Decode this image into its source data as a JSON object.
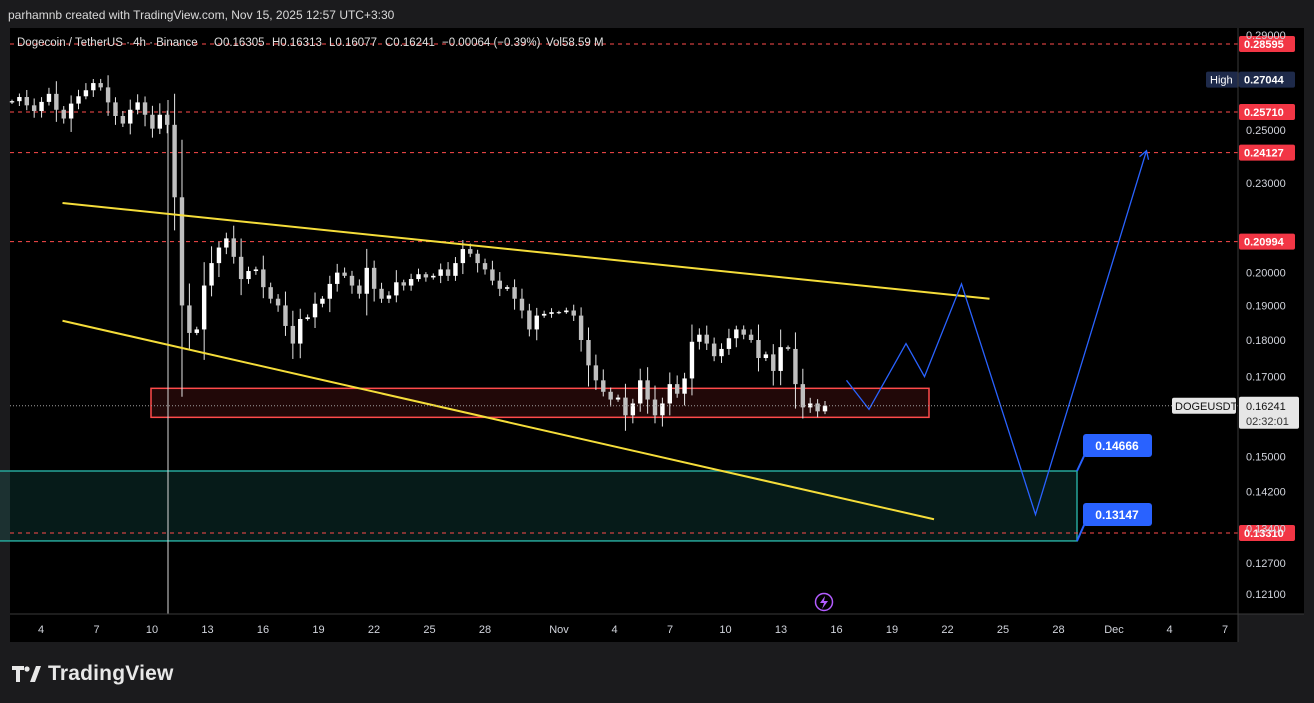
{
  "header": {
    "attribution": "parhamnb created with TradingView.com, Nov 15, 2025 12:57 UTC+3:30"
  },
  "legend": {
    "symbol": "Dogecoin / TetherUS · 4h · Binance",
    "open": "O0.16305",
    "high": "H0.16313",
    "low": "L0.16077",
    "close": "C0.16241",
    "change": "−0.00064 (−0.39%)",
    "volume": "Vol58.59 M"
  },
  "brand": {
    "name": "TradingView",
    "logo_icon": "tradingview-logo-icon"
  },
  "colors": {
    "background": "#000000",
    "frame": "#1b1b1d",
    "candle": "#e6e6e6",
    "yellow": "#f5dd3a",
    "red_level": "#ff4b4b",
    "blue_path": "#2962ff",
    "green_zone": "#26a69a",
    "label_blue": "#2962ff"
  },
  "chart_data": {
    "type": "candlestick",
    "price_axis": {
      "ticks": [
        "0.29000",
        "0.25000",
        "0.23000",
        "0.20000",
        "0.19000",
        "0.18000",
        "0.17000",
        "0.15000",
        "0.14200",
        "0.13400",
        "0.12700",
        "0.12100"
      ]
    },
    "time_axis": {
      "ticks": [
        "4",
        "7",
        "10",
        "13",
        "16",
        "19",
        "22",
        "25",
        "28",
        "Nov",
        "4",
        "7",
        "10",
        "13",
        "16",
        "19",
        "22",
        "25",
        "28",
        "Dec",
        "4",
        "7"
      ]
    },
    "price_series_close": [
      0.2615,
      0.2632,
      0.2598,
      0.2575,
      0.2612,
      0.2645,
      0.258,
      0.2545,
      0.2605,
      0.2635,
      0.266,
      0.269,
      0.2672,
      0.261,
      0.2555,
      0.2525,
      0.258,
      0.261,
      0.256,
      0.2505,
      0.256,
      0.252,
      0.225,
      0.19,
      0.182,
      0.183,
      0.196,
      0.203,
      0.208,
      0.211,
      0.205,
      0.198,
      0.2005,
      0.201,
      0.1955,
      0.192,
      0.19,
      0.184,
      0.179,
      0.186,
      0.1865,
      0.1905,
      0.192,
      0.1965,
      0.2,
      0.199,
      0.196,
      0.1935,
      0.2015,
      0.195,
      0.192,
      0.193,
      0.197,
      0.196,
      0.198,
      0.1995,
      0.1985,
      0.199,
      0.201,
      0.199,
      0.203,
      0.2075,
      0.206,
      0.203,
      0.201,
      0.1975,
      0.195,
      0.1955,
      0.192,
      0.1885,
      0.183,
      0.187,
      0.1875,
      0.188,
      0.188,
      0.1885,
      0.187,
      0.18,
      0.173,
      0.169,
      0.166,
      0.164,
      0.1645,
      0.16,
      0.163,
      0.169,
      0.164,
      0.16,
      0.163,
      0.168,
      0.1655,
      0.1695,
      0.1795,
      0.1815,
      0.179,
      0.1755,
      0.1775,
      0.1805,
      0.183,
      0.1815,
      0.18,
      0.175,
      0.176,
      0.1715,
      0.178,
      0.1775,
      0.168,
      0.162,
      0.163,
      0.161,
      0.1624
    ],
    "projection_path": [
      {
        "date": "Nov 16",
        "price": 0.169
      },
      {
        "date": "Nov 17",
        "price": 0.1615
      },
      {
        "date": "Nov 19",
        "price": 0.179
      },
      {
        "date": "Nov 20",
        "price": 0.17
      },
      {
        "date": "Nov 22",
        "price": 0.1965
      },
      {
        "date": "Nov 26",
        "price": 0.137
      },
      {
        "date": "Dec 2",
        "price": 0.242
      }
    ],
    "trendlines": [
      {
        "name": "upper",
        "from": {
          "date": "Oct 5",
          "price": 0.223
        },
        "to": {
          "date": "Nov 24",
          "price": 0.192
        }
      },
      {
        "name": "lower",
        "from": {
          "date": "Oct 5",
          "price": 0.1855
        },
        "to": {
          "date": "Nov 21",
          "price": 0.136
        }
      }
    ],
    "horizontal_levels": [
      {
        "label": "0.28595",
        "price": 0.28595,
        "style": "dashed-red"
      },
      {
        "label": "0.25710",
        "price": 0.2571,
        "style": "dashed-red"
      },
      {
        "label": "0.24127",
        "price": 0.24127,
        "style": "dashed-red"
      },
      {
        "label": "0.20994",
        "price": 0.20994,
        "style": "dashed-red"
      },
      {
        "label": "0.13310",
        "price": 0.1331,
        "style": "dashed-red"
      }
    ],
    "zones": [
      {
        "name": "red-box",
        "price_top": 0.1669,
        "price_bottom": 0.1595,
        "from": "Oct 10",
        "to": "Nov 21"
      },
      {
        "name": "green-box",
        "price_top": 0.14666,
        "price_bottom": 0.13147,
        "from": "Oct 1",
        "to": "Nov 29"
      }
    ],
    "labels": {
      "high": "High",
      "high_value": "0.27044",
      "green_top": "0.14666",
      "green_bottom": "0.13147",
      "symbol_tag": "DOGEUSDT",
      "last_price": "0.16241",
      "countdown": "02:32:01"
    }
  }
}
